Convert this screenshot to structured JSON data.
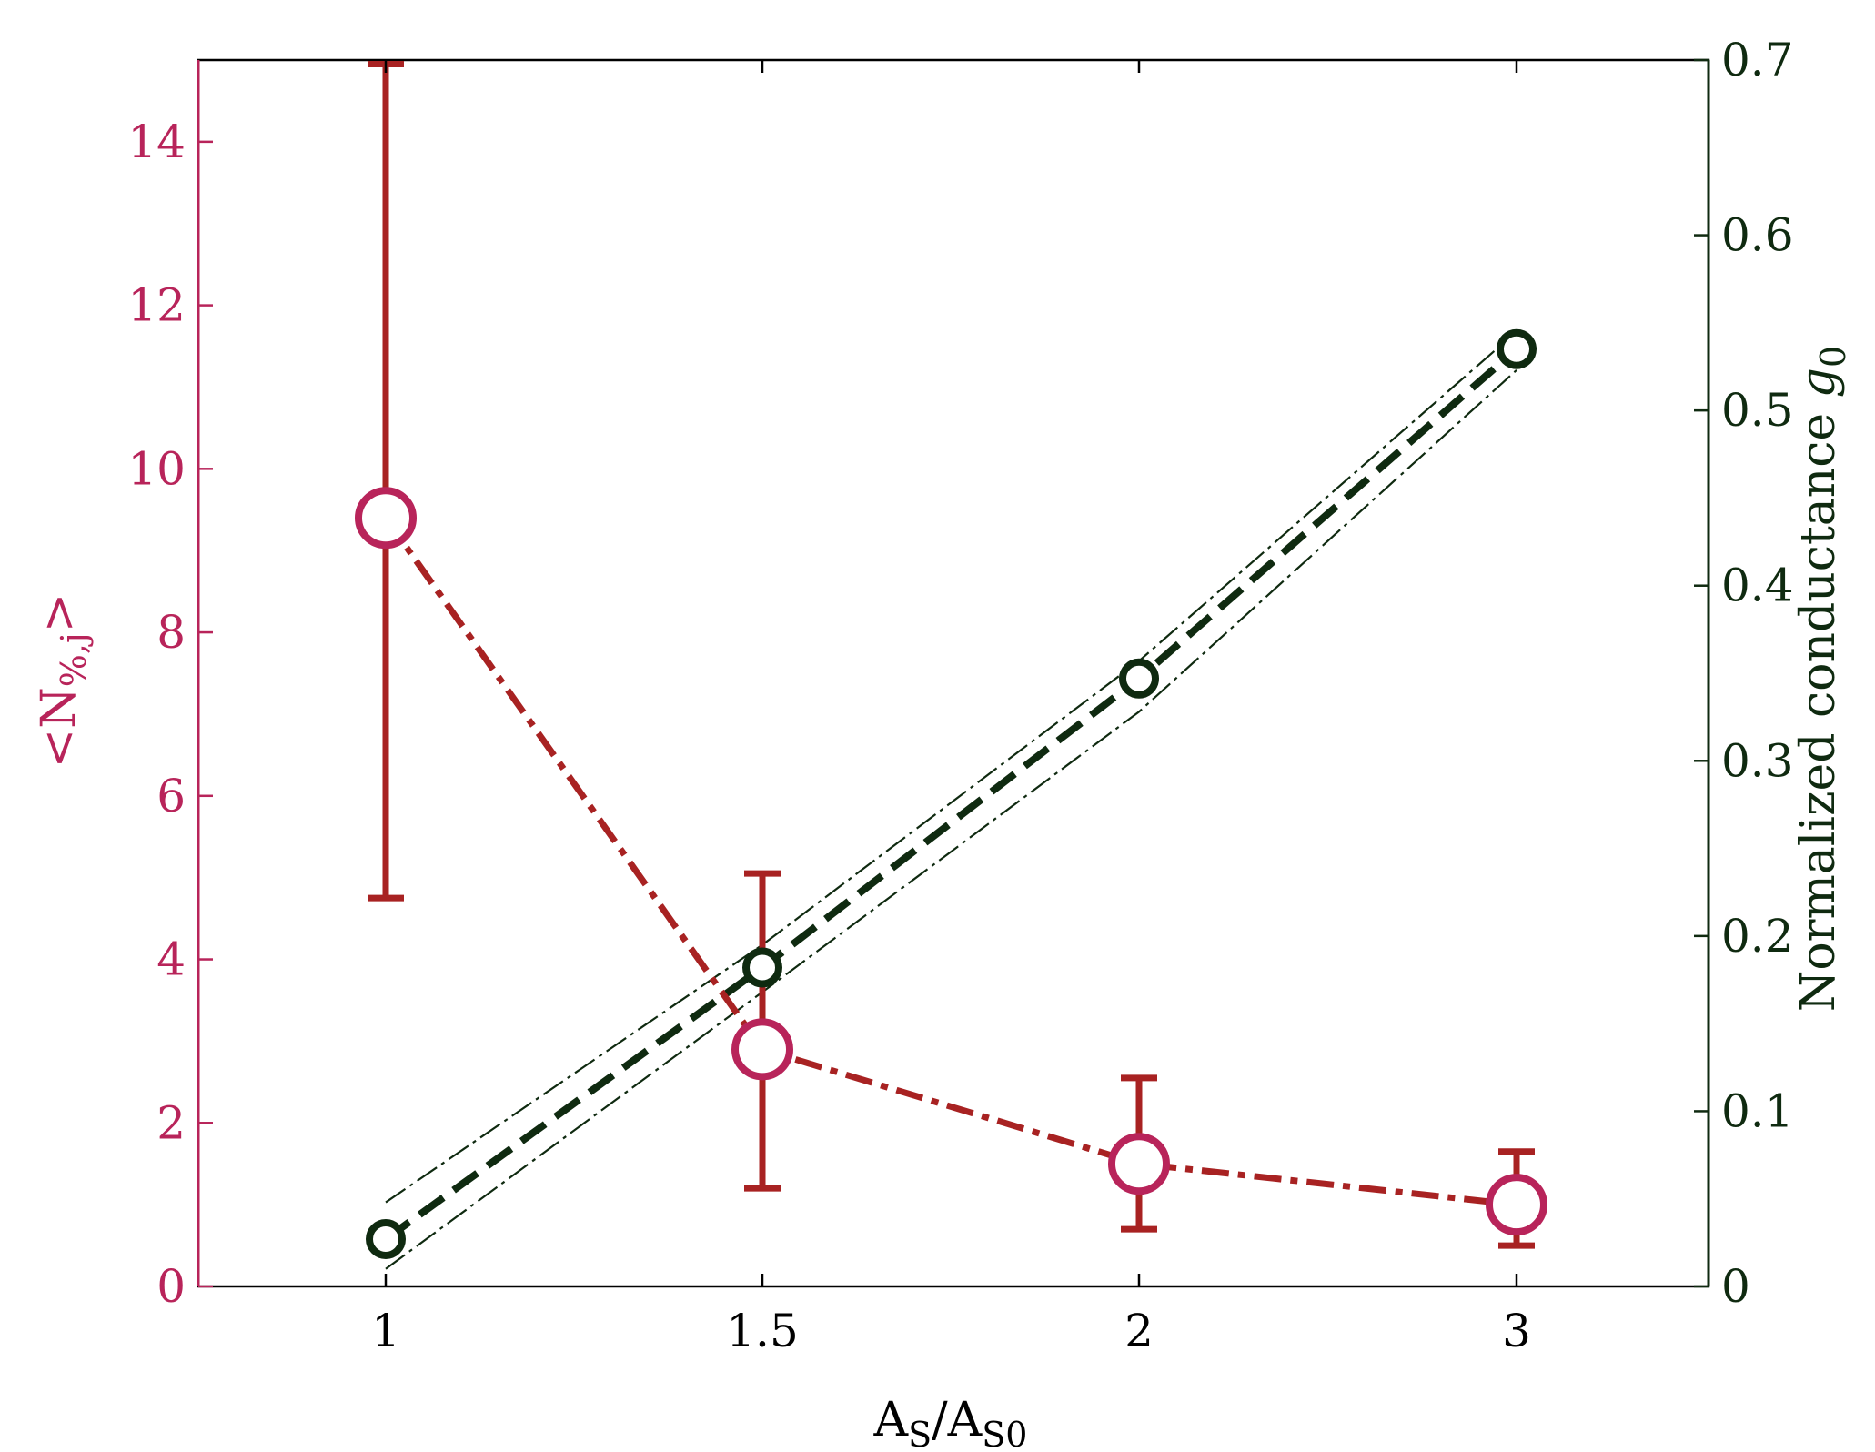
{
  "colors": {
    "left_axis": "#b8245a",
    "right_axis": "#0f2a10",
    "series_n": "#a82222",
    "series_g": "#0f2a10",
    "frame": "#000000"
  },
  "chart_data": {
    "type": "line",
    "title": "",
    "x_categories": [
      "1",
      "1.5",
      "2",
      "3"
    ],
    "x_label": {
      "base": "A",
      "sub1": "S",
      "mid": "/A",
      "sub2": "S0"
    },
    "left_axis": {
      "label": {
        "pre": "<N",
        "sub": "%,j",
        "post": ">"
      },
      "ylim": [
        0,
        15
      ],
      "ticks": [
        "0",
        "2",
        "4",
        "6",
        "8",
        "10",
        "12",
        "14"
      ]
    },
    "right_axis": {
      "label": {
        "text": "Normalized conductance ",
        "italic": "g",
        "sub": "0"
      },
      "ylim": [
        0,
        0.7
      ],
      "ticks": [
        "0",
        "0.1",
        "0.2",
        "0.3",
        "0.4",
        "0.5",
        "0.6",
        "0.7"
      ]
    },
    "series": [
      {
        "axis": "left",
        "values": [
          9.4,
          2.9,
          1.5,
          1.0
        ],
        "err_low": [
          4.75,
          1.2,
          0.7,
          0.5
        ],
        "err_high": [
          14.95,
          5.05,
          2.55,
          1.65
        ]
      },
      {
        "axis": "right",
        "values": [
          0.027,
          0.182,
          0.347,
          0.535
        ],
        "band_upper": [
          0.048,
          0.195,
          0.357,
          0.545
        ],
        "band_lower": [
          0.01,
          0.168,
          0.328,
          0.523
        ]
      }
    ],
    "grid": false
  }
}
